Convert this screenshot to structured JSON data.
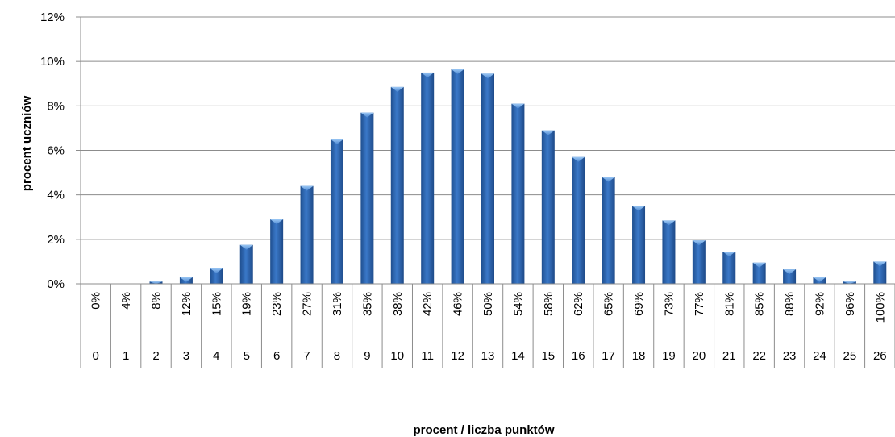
{
  "chart_data": {
    "type": "bar",
    "title": "",
    "xlabel": "procent / liczba punktów",
    "ylabel": "procent  uczniów",
    "ylim": [
      0,
      12
    ],
    "y_ticks": [
      "0%",
      "2%",
      "4%",
      "6%",
      "8%",
      "10%",
      "12%"
    ],
    "grid": true,
    "legend": "none",
    "bar_color": "#2e5fa3",
    "bar_highlight_color": "#6fa8e8",
    "categories_percent": [
      "0%",
      "4%",
      "8%",
      "12%",
      "15%",
      "19%",
      "23%",
      "27%",
      "31%",
      "35%",
      "38%",
      "42%",
      "46%",
      "50%",
      "54%",
      "58%",
      "62%",
      "65%",
      "69%",
      "73%",
      "77%",
      "81%",
      "85%",
      "88%",
      "92%",
      "96%",
      "100%"
    ],
    "categories_points": [
      "0",
      "1",
      "2",
      "3",
      "4",
      "5",
      "6",
      "7",
      "8",
      "9",
      "10",
      "11",
      "12",
      "13",
      "14",
      "15",
      "16",
      "17",
      "18",
      "19",
      "20",
      "21",
      "22",
      "23",
      "24",
      "25",
      "26"
    ],
    "values": [
      0,
      0,
      0.1,
      0.3,
      0.7,
      1.75,
      2.9,
      4.4,
      6.5,
      7.7,
      8.85,
      9.5,
      9.65,
      9.45,
      8.1,
      6.9,
      5.7,
      4.8,
      3.5,
      2.85,
      1.95,
      1.45,
      0.95,
      0.65,
      0.3,
      0.1,
      1.0
    ]
  }
}
